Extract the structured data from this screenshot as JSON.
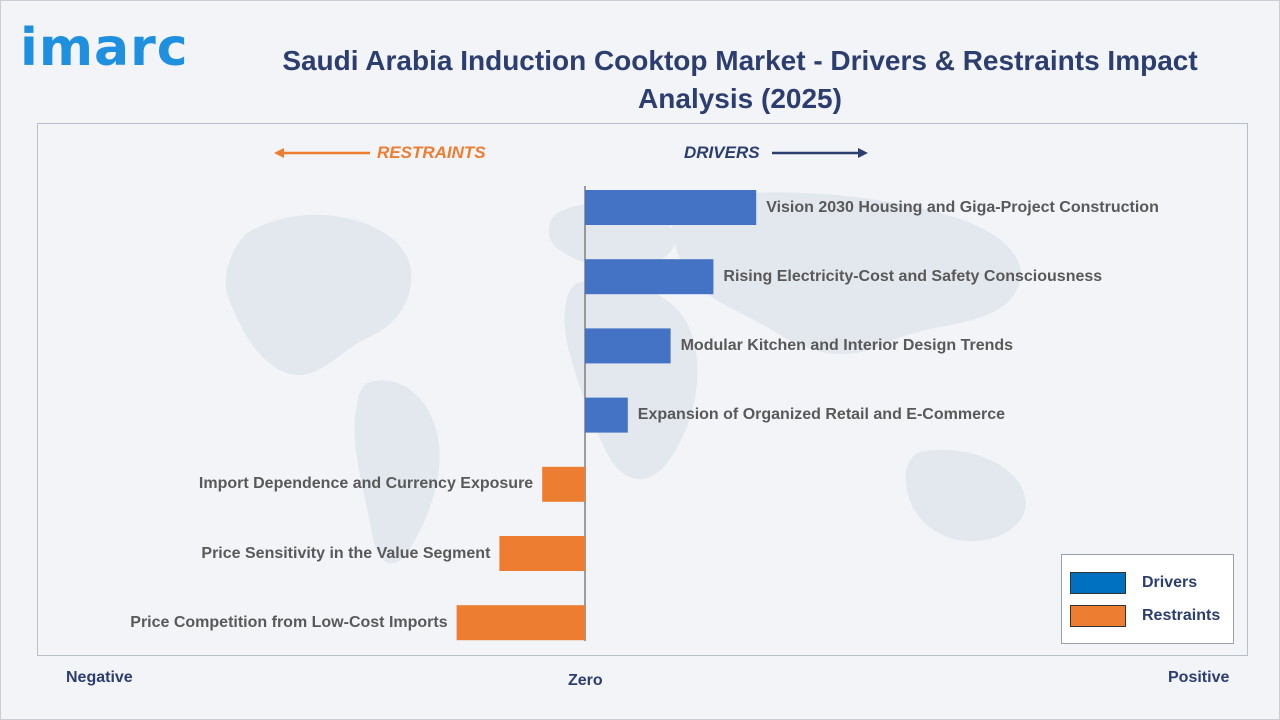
{
  "logo": {
    "text": "imarc"
  },
  "title": "Saudi Arabia Induction Cooktop Market - Drivers & Restraints Impact Analysis (2025)",
  "direction_labels": {
    "restraints": "RESTRAINTS",
    "drivers": "DRIVERS"
  },
  "axis_labels": {
    "negative": "Negative",
    "zero": "Zero",
    "positive": "Positive"
  },
  "colors": {
    "drivers": "#4472c4",
    "restraints": "#ed7d31",
    "title": "#2c3e70",
    "logo": "#1f8fe0"
  },
  "legend": [
    {
      "label": "Drivers",
      "color": "#0070c0"
    },
    {
      "label": "Restraints",
      "color": "#ed7d31"
    }
  ],
  "chart_data": {
    "type": "bar",
    "orientation": "horizontal-diverging",
    "categories": [
      "Vision 2030 Housing and Giga-Project Construction",
      "Rising Electricity-Cost and Safety Consciousness",
      "Modular Kitchen and Interior Design Trends",
      "Expansion of Organized Retail and E-Commerce",
      "Import Dependence and Currency Exposure",
      "Price Sensitivity in the Value Segment",
      "Price Competition from Low-Cost Imports"
    ],
    "series": [
      {
        "name": "Drivers",
        "values": [
          4,
          3,
          2,
          1,
          0,
          0,
          0
        ]
      },
      {
        "name": "Restraints",
        "values": [
          0,
          0,
          0,
          0,
          -1,
          -2,
          -3
        ]
      }
    ],
    "xlim": [
      -5,
      5
    ],
    "legend_position": "bottom-right"
  }
}
